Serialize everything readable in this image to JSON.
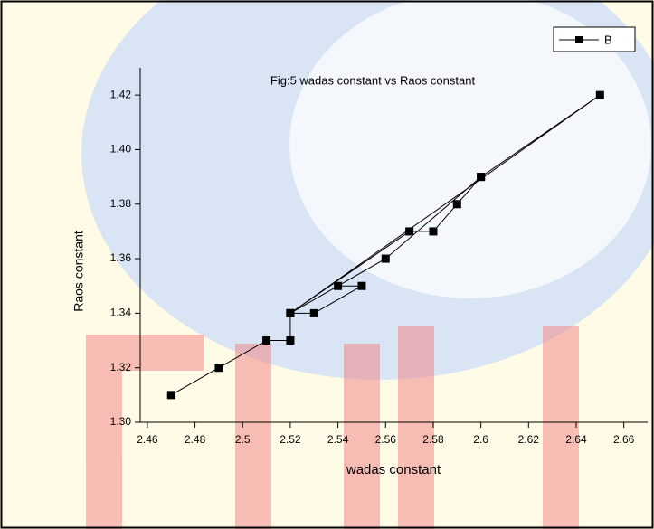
{
  "chart_data": {
    "type": "line",
    "title": "Fig:5 wadas constant vs Raos constant",
    "x_label": "wadas constant",
    "y_label": "Raos constant",
    "x": [
      2.47,
      2.49,
      2.51,
      2.52,
      2.52,
      2.65,
      2.6,
      2.59,
      2.58,
      2.57,
      2.52,
      2.53,
      2.55,
      2.54,
      2.52,
      2.56,
      2.6
    ],
    "series": [
      {
        "name": "B",
        "color": "#000000",
        "values": [
          1.31,
          1.32,
          1.33,
          1.33,
          1.34,
          1.42,
          1.39,
          1.38,
          1.37,
          1.37,
          1.34,
          1.34,
          1.35,
          1.35,
          1.34,
          1.36,
          1.39
        ]
      }
    ],
    "xlim": [
      2.457,
      2.67
    ],
    "ylim": [
      1.3,
      1.43
    ],
    "xticks": [
      2.46,
      2.48,
      2.5,
      2.52,
      2.54,
      2.56,
      2.58,
      2.6,
      2.62,
      2.64,
      2.66
    ],
    "yticks": [
      {
        "value": 1.3,
        "label": "1.30"
      },
      1.32,
      1.34,
      1.36,
      1.38,
      {
        "value": 1.4,
        "label": "1.40"
      },
      1.42
    ],
    "legend": "top-right"
  }
}
